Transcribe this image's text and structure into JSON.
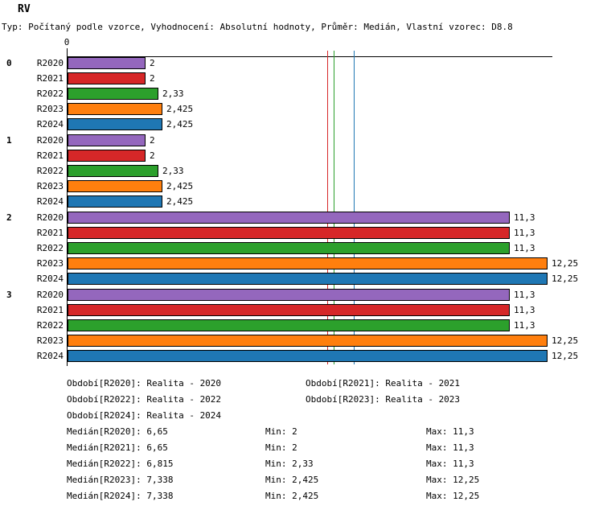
{
  "title": "RV",
  "subtitle": "Typ: Počítaný podle vzorce, Vyhodnocení: Absolutní hodnoty, Průměr: Medián, Vlastní vzorec: D8.8",
  "chart_data": {
    "type": "bar",
    "orientation": "horizontal",
    "title": "RV",
    "value_format": "decimal-comma",
    "axis": {
      "zero_label": "0",
      "xmin": 0,
      "xmax": 12.4,
      "gridlines": false
    },
    "series": [
      "R2020",
      "R2021",
      "R2022",
      "R2023",
      "R2024"
    ],
    "series_colors": {
      "R2020": "#9467bd",
      "R2021": "#d62728",
      "R2022": "#2ca02c",
      "R2023": "#ff7f0e",
      "R2024": "#1f77b4"
    },
    "groups": [
      {
        "label": "0",
        "bars": [
          {
            "series": "R2020",
            "value": 2,
            "label": "2"
          },
          {
            "series": "R2021",
            "value": 2,
            "label": "2"
          },
          {
            "series": "R2022",
            "value": 2.33,
            "label": "2,33"
          },
          {
            "series": "R2023",
            "value": 2.425,
            "label": "2,425"
          },
          {
            "series": "R2024",
            "value": 2.425,
            "label": "2,425"
          }
        ]
      },
      {
        "label": "1",
        "bars": [
          {
            "series": "R2020",
            "value": 2,
            "label": "2"
          },
          {
            "series": "R2021",
            "value": 2,
            "label": "2"
          },
          {
            "series": "R2022",
            "value": 2.33,
            "label": "2,33"
          },
          {
            "series": "R2023",
            "value": 2.425,
            "label": "2,425"
          },
          {
            "series": "R2024",
            "value": 2.425,
            "label": "2,425"
          }
        ]
      },
      {
        "label": "2",
        "bars": [
          {
            "series": "R2020",
            "value": 11.3,
            "label": "11,3"
          },
          {
            "series": "R2021",
            "value": 11.3,
            "label": "11,3"
          },
          {
            "series": "R2022",
            "value": 11.3,
            "label": "11,3"
          },
          {
            "series": "R2023",
            "value": 12.25,
            "label": "12,25"
          },
          {
            "series": "R2024",
            "value": 12.25,
            "label": "12,25"
          }
        ]
      },
      {
        "label": "3",
        "bars": [
          {
            "series": "R2020",
            "value": 11.3,
            "label": "11,3"
          },
          {
            "series": "R2021",
            "value": 11.3,
            "label": "11,3"
          },
          {
            "series": "R2022",
            "value": 11.3,
            "label": "11,3"
          },
          {
            "series": "R2023",
            "value": 12.25,
            "label": "12,25"
          },
          {
            "series": "R2024",
            "value": 12.25,
            "label": "12,25"
          }
        ]
      }
    ],
    "median_lines": [
      {
        "series": "R2020",
        "value": 6.65
      },
      {
        "series": "R2021",
        "value": 6.65
      },
      {
        "series": "R2022",
        "value": 6.815
      },
      {
        "series": "R2023",
        "value": 7.338
      },
      {
        "series": "R2024",
        "value": 7.338
      }
    ],
    "stats": {
      "median": {
        "R2020": 6.65,
        "R2021": 6.65,
        "R2022": 6.815,
        "R2023": 7.338,
        "R2024": 7.338
      },
      "min": {
        "R2020": 2,
        "R2021": 2,
        "R2022": 2.33,
        "R2023": 2.425,
        "R2024": 2.425
      },
      "max": {
        "R2020": 11.3,
        "R2021": 11.3,
        "R2022": 11.3,
        "R2023": 12.25,
        "R2024": 12.25
      }
    }
  },
  "legend_rows": [
    [
      "Období[R2020]: Realita - 2020",
      "Období[R2021]: Realita - 2021"
    ],
    [
      "Období[R2022]: Realita - 2022",
      "Období[R2023]: Realita - 2023"
    ],
    [
      "Období[R2024]: Realita - 2024"
    ]
  ],
  "stats_rows": [
    {
      "median": "Medián[R2020]: 6,65",
      "min": "Min: 2",
      "max": "Max: 11,3"
    },
    {
      "median": "Medián[R2021]: 6,65",
      "min": "Min: 2",
      "max": "Max: 11,3"
    },
    {
      "median": "Medián[R2022]: 6,815",
      "min": "Min: 2,33",
      "max": "Max: 11,3"
    },
    {
      "median": "Medián[R2023]: 7,338",
      "min": "Min: 2,425",
      "max": "Max: 12,25"
    },
    {
      "median": "Medián[R2024]: 7,338",
      "min": "Min: 2,425",
      "max": "Max: 12,25"
    }
  ]
}
